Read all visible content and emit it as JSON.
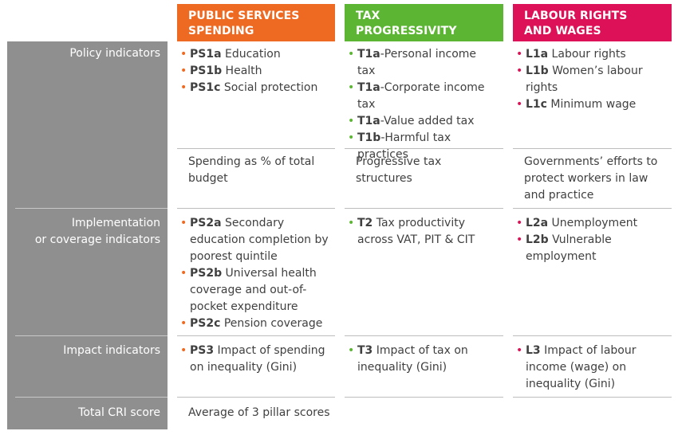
{
  "headers": {
    "public_services": [
      "PUBLIC SERVICES",
      "SPENDING"
    ],
    "tax": [
      "TAX",
      "PROGRESSIVITY"
    ],
    "labour": [
      "LABOUR RIGHTS",
      "AND WAGES"
    ]
  },
  "row_labels": {
    "policy": [
      "Policy indicators"
    ],
    "implementation": [
      "Implementation",
      "or coverage indicators"
    ],
    "impact": [
      "Impact indicators"
    ],
    "total": [
      "Total CRI score"
    ]
  },
  "colors": {
    "public_services": "#ee6a22",
    "tax": "#5db534",
    "labour": "#dd1157",
    "label_panel": "#8f8f8f"
  },
  "policy": {
    "public_services": [
      {
        "code": "PS1a",
        "text": " Education"
      },
      {
        "code": "PS1b",
        "text": " Health"
      },
      {
        "code": "PS1c",
        "text": " Social protection"
      }
    ],
    "tax": [
      {
        "code": "T1a",
        "text": "-Personal income tax"
      },
      {
        "code": "T1a",
        "text": "-Corporate income tax"
      },
      {
        "code": "T1a",
        "text": "-Value added tax"
      },
      {
        "code": "T1b",
        "text": "-Harmful tax practices"
      }
    ],
    "labour": [
      {
        "code": "L1a",
        "text": " Labour rights"
      },
      {
        "code": "L1b",
        "text": " Women’s labour rights"
      },
      {
        "code": "L1c",
        "text": " Minimum wage"
      }
    ]
  },
  "policy_notes": {
    "public_services": "Spending as % of total budget",
    "tax": "Progressive tax structures",
    "labour": "Governments’ efforts to protect workers in law and practice"
  },
  "implementation": {
    "public_services": [
      {
        "code": "PS2a",
        "text": " Secondary education completion by poorest quintile"
      },
      {
        "code": "PS2b",
        "text": " Universal health coverage and out-of-pocket expenditure"
      },
      {
        "code": "PS2c",
        "text": " Pension coverage"
      }
    ],
    "tax": [
      {
        "code": "T2",
        "text": " Tax productivity across VAT, PIT & CIT"
      }
    ],
    "labour": [
      {
        "code": "L2a",
        "text": " Unemployment"
      },
      {
        "code": "L2b",
        "text": " Vulnerable employment"
      }
    ]
  },
  "impact": {
    "public_services": [
      {
        "code": "PS3",
        "text": " Impact of spending on inequality (Gini)"
      }
    ],
    "tax": [
      {
        "code": "T3",
        "text": " Impact of tax on inequality (Gini)"
      }
    ],
    "labour": [
      {
        "code": "L3",
        "text": " Impact of labour income (wage) on inequality (Gini)"
      }
    ]
  },
  "total_score": "Average of 3 pillar scores"
}
